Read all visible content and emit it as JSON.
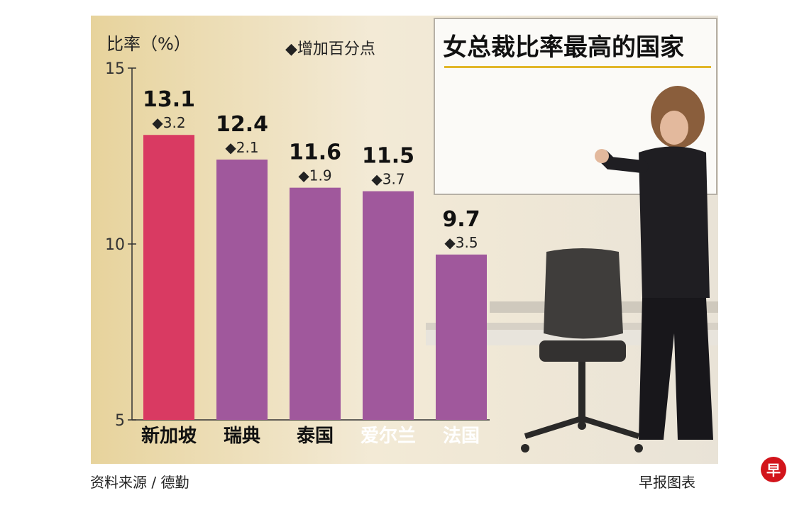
{
  "chart_data": {
    "type": "bar",
    "title": "女总裁比率最高的国家",
    "ylabel": "比率（%）",
    "legend": "◆增加百分点",
    "ylim": [
      5,
      15
    ],
    "yticks": [
      "5",
      "10",
      "15"
    ],
    "categories": [
      "新加坡",
      "瑞典",
      "泰国",
      "爱尔兰",
      "法国"
    ],
    "values": [
      13.1,
      12.4,
      11.6,
      11.5,
      9.7
    ],
    "increase": [
      "◆3.2",
      "◆2.1",
      "◆1.9",
      "◆3.7",
      "◆3.5"
    ],
    "colors": {
      "highlight": "#d93a62",
      "bar": "#a0589c",
      "background": "#f1ead7"
    }
  },
  "footer": {
    "source": "资料来源 / 德勤",
    "credit": "早报图表",
    "logo_text": "早"
  }
}
